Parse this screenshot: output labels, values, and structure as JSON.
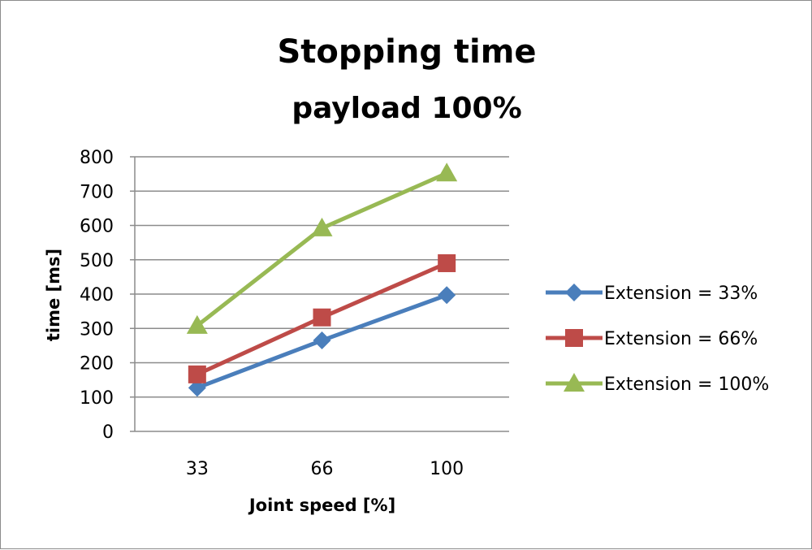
{
  "chart_data": {
    "type": "line",
    "title": "Stopping time",
    "subtitle": "payload 100%",
    "xlabel": "Joint speed [%]",
    "ylabel": "time [ms]",
    "categories": [
      "33",
      "66",
      "100"
    ],
    "ylim": [
      0,
      800
    ],
    "yticks": [
      0,
      100,
      200,
      300,
      400,
      500,
      600,
      700,
      800
    ],
    "grid": true,
    "legend": "right",
    "series": [
      {
        "name": "Extension = 33%",
        "values": [
          127,
          265,
          397
        ],
        "color": "#4a7ebb",
        "marker": "diamond"
      },
      {
        "name": "Extension = 66%",
        "values": [
          166,
          332,
          490
        ],
        "color": "#be4b48",
        "marker": "square"
      },
      {
        "name": "Extension = 100%",
        "values": [
          308,
          592,
          752
        ],
        "color": "#98b954",
        "marker": "triangle"
      }
    ]
  }
}
